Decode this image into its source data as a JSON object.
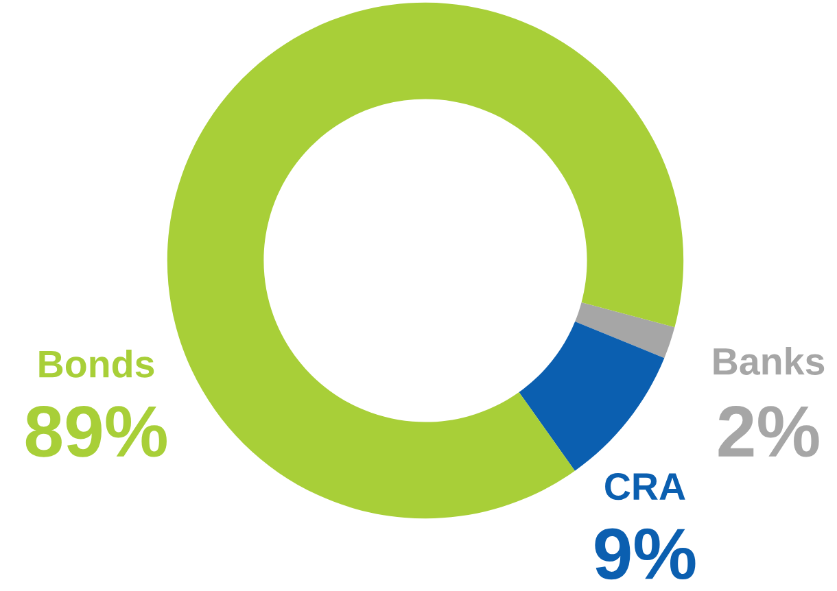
{
  "chart_data": {
    "type": "donut",
    "categories": [
      "Banks",
      "CRA",
      "Bonds"
    ],
    "values": [
      2,
      9,
      89
    ],
    "colors": [
      "#a6a6a6",
      "#0b5fb0",
      "#a8cf38"
    ],
    "value_labels": [
      "2%",
      "9%",
      "89%"
    ],
    "legend": false
  }
}
